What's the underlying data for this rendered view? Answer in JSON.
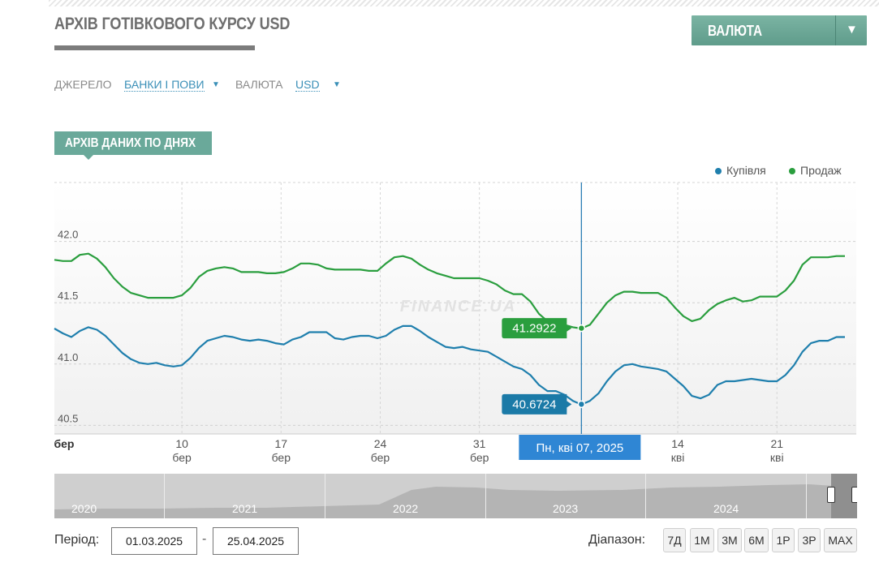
{
  "page": {
    "title": "АРХІВ ГОТІВКОВОГО КУРСУ USD",
    "currency_button": "ВАЛЮТА",
    "section_tag": "АРХІВ ДАНИХ ПО ДНЯХ"
  },
  "filters": {
    "source_label": "ДЖЕРЕЛО",
    "source_value": "БАНКИ І ПОВИ",
    "currency_label": "ВАЛЮТА",
    "currency_value": "USD"
  },
  "chart_data": {
    "type": "line",
    "watermark": "FINANCE.UA",
    "ylim": [
      40.43,
      42.48
    ],
    "yticks": [
      40.5,
      41.0,
      41.5,
      42.0
    ],
    "ytick_labels": [
      "40.5",
      "41.0",
      "41.5",
      "42.0"
    ],
    "xlim": [
      0,
      56.6
    ],
    "xticks": [
      {
        "x": 0,
        "day": "бер",
        "month": ""
      },
      {
        "x": 9,
        "day": "10",
        "month": "бер"
      },
      {
        "x": 16,
        "day": "17",
        "month": "бер"
      },
      {
        "x": 23,
        "day": "24",
        "month": "бер"
      },
      {
        "x": 30,
        "day": "31",
        "month": "бер"
      },
      {
        "x": 44,
        "day": "14",
        "month": "кві"
      },
      {
        "x": 51,
        "day": "21",
        "month": "кві"
      }
    ],
    "x_start_date": "2025-03-01",
    "series": [
      {
        "name": "Купівля",
        "color": "#1f7fad",
        "x": [
          0,
          0.6,
          1.2,
          1.8,
          2.4,
          3.0,
          3.6,
          4.2,
          4.8,
          5.4,
          6.0,
          6.6,
          7.2,
          7.8,
          8.4,
          9.0,
          9.6,
          10.2,
          10.8,
          11.4,
          12.0,
          12.6,
          13.2,
          13.8,
          14.4,
          15.0,
          15.6,
          16.2,
          16.8,
          17.4,
          18.0,
          18.6,
          19.2,
          19.8,
          20.4,
          21.0,
          21.6,
          22.2,
          22.8,
          23.4,
          24.0,
          24.6,
          25.2,
          25.8,
          26.4,
          27.0,
          27.6,
          28.2,
          28.8,
          29.4,
          30.0,
          30.6,
          31.2,
          31.8,
          32.4,
          33.0,
          33.6,
          34.2,
          34.8,
          35.4,
          36.0,
          36.6,
          37.2,
          37.8,
          38.4,
          39.0,
          39.6,
          40.2,
          40.8,
          41.4,
          42.0,
          42.6,
          43.2,
          43.8,
          44.4,
          45.0,
          45.6,
          46.2,
          46.8,
          47.4,
          48.0,
          48.6,
          49.2,
          49.8,
          50.4,
          51.0,
          51.6,
          52.2,
          52.8,
          53.4,
          54.0,
          54.6,
          55.2,
          55.8
        ],
        "values": [
          41.29,
          41.25,
          41.22,
          41.27,
          41.3,
          41.28,
          41.23,
          41.16,
          41.09,
          41.04,
          41.01,
          41.0,
          41.01,
          40.99,
          40.98,
          40.99,
          41.05,
          41.13,
          41.19,
          41.21,
          41.23,
          41.22,
          41.2,
          41.19,
          41.2,
          41.19,
          41.17,
          41.16,
          41.2,
          41.22,
          41.26,
          41.26,
          41.26,
          41.21,
          41.2,
          41.22,
          41.23,
          41.23,
          41.21,
          41.23,
          41.28,
          41.31,
          41.31,
          41.27,
          41.22,
          41.18,
          41.14,
          41.13,
          41.14,
          41.12,
          41.11,
          41.1,
          41.06,
          41.02,
          40.98,
          40.96,
          40.91,
          40.83,
          40.78,
          40.78,
          40.75,
          40.7,
          40.67,
          40.7,
          40.76,
          40.86,
          40.94,
          40.99,
          41.0,
          40.98,
          40.97,
          40.96,
          40.94,
          40.88,
          40.82,
          40.74,
          40.72,
          40.75,
          40.83,
          40.86,
          40.86,
          40.87,
          40.88,
          40.87,
          40.86,
          40.86,
          40.91,
          40.99,
          41.1,
          41.17,
          41.19,
          41.19,
          41.22,
          41.22
        ]
      },
      {
        "name": "Продаж",
        "color": "#2a9e3e",
        "x": [
          0,
          0.6,
          1.2,
          1.8,
          2.4,
          3.0,
          3.6,
          4.2,
          4.8,
          5.4,
          6.0,
          6.6,
          7.2,
          7.8,
          8.4,
          9.0,
          9.6,
          10.2,
          10.8,
          11.4,
          12.0,
          12.6,
          13.2,
          13.8,
          14.4,
          15.0,
          15.6,
          16.2,
          16.8,
          17.4,
          18.0,
          18.6,
          19.2,
          19.8,
          20.4,
          21.0,
          21.6,
          22.2,
          22.8,
          23.4,
          24.0,
          24.6,
          25.2,
          25.8,
          26.4,
          27.0,
          27.6,
          28.2,
          28.8,
          29.4,
          30.0,
          30.6,
          31.2,
          31.8,
          32.4,
          33.0,
          33.6,
          34.2,
          34.8,
          35.4,
          36.0,
          36.6,
          37.2,
          37.8,
          38.4,
          39.0,
          39.6,
          40.2,
          40.8,
          41.4,
          42.0,
          42.6,
          43.2,
          43.8,
          44.4,
          45.0,
          45.6,
          46.2,
          46.8,
          47.4,
          48.0,
          48.6,
          49.2,
          49.8,
          50.4,
          51.0,
          51.6,
          52.2,
          52.8,
          53.4,
          54.0,
          54.6,
          55.2,
          55.8
        ],
        "values": [
          41.85,
          41.84,
          41.84,
          41.89,
          41.9,
          41.86,
          41.79,
          41.7,
          41.63,
          41.58,
          41.56,
          41.54,
          41.54,
          41.54,
          41.54,
          41.56,
          41.62,
          41.71,
          41.76,
          41.78,
          41.79,
          41.78,
          41.75,
          41.75,
          41.75,
          41.74,
          41.74,
          41.75,
          41.78,
          41.82,
          41.82,
          41.81,
          41.78,
          41.77,
          41.77,
          41.77,
          41.77,
          41.76,
          41.76,
          41.82,
          41.87,
          41.88,
          41.86,
          41.81,
          41.77,
          41.74,
          41.72,
          41.7,
          41.7,
          41.7,
          41.7,
          41.68,
          41.65,
          41.6,
          41.57,
          41.57,
          41.51,
          41.41,
          41.35,
          41.35,
          41.32,
          41.3,
          41.29,
          41.32,
          41.41,
          41.5,
          41.56,
          41.59,
          41.59,
          41.58,
          41.58,
          41.58,
          41.54,
          41.46,
          41.39,
          41.35,
          41.37,
          41.44,
          41.49,
          41.52,
          41.54,
          41.51,
          41.52,
          41.55,
          41.55,
          41.55,
          41.6,
          41.68,
          41.81,
          41.87,
          41.87,
          41.87,
          41.88,
          41.88
        ]
      }
    ],
    "legend": [
      "Купівля",
      "Продаж"
    ],
    "legend_position": "top-right",
    "crosshair": {
      "x": 37.2,
      "date_label": "Пн, кві 07, 2025",
      "buy_value": 40.6724,
      "buy_label": "40.6724",
      "sell_value": 41.2922,
      "sell_label": "41.2922"
    }
  },
  "navigator": {
    "years": [
      "2020",
      "2021",
      "2022",
      "2023",
      "2024"
    ]
  },
  "period": {
    "label": "Період:",
    "from": "01.03.2025",
    "to": "25.04.2025",
    "separator": "-"
  },
  "range": {
    "label": "Діапазон:",
    "buttons": [
      "7Д",
      "1М",
      "3М",
      "6М",
      "1Р",
      "3Р",
      "MAX"
    ]
  }
}
